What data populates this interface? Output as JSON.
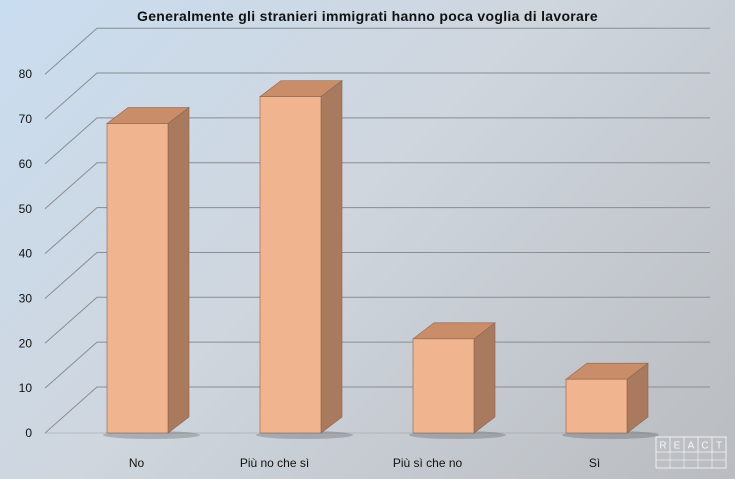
{
  "chart_data": {
    "type": "bar",
    "title": "Generalmente gli stranieri immigrati hanno poca voglia di lavorare",
    "categories": [
      "No",
      "Più no che sì",
      "Più sì che no",
      "Sì"
    ],
    "series": [
      {
        "values": [
          69,
          75,
          21,
          12
        ]
      }
    ],
    "ylim": [
      0,
      80
    ],
    "yticks": [
      0,
      10,
      20,
      30,
      40,
      50,
      60,
      70,
      80
    ],
    "style": "3d-column",
    "grid": true,
    "bar_color": "#f0b48e",
    "bar_side_color": "#a97a5d",
    "bar_top_color": "#c98e69",
    "watermark_text": "REACT"
  }
}
